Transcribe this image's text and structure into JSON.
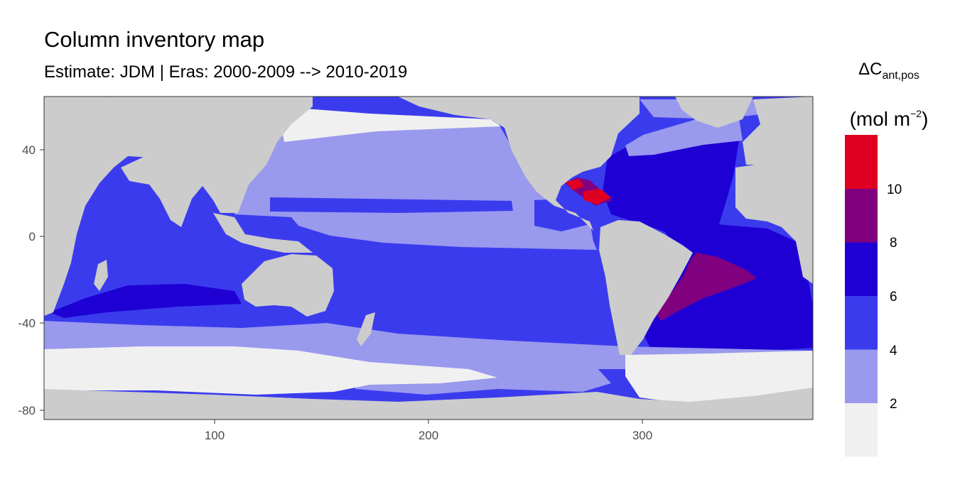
{
  "title": "Column inventory map",
  "subtitle": "Estimate: JDM  | Eras: 2000-2009 --> 2010-2019",
  "legend": {
    "title_main": "ΔC",
    "title_sub": "ant,pos",
    "unit_prefix": "(mol m",
    "unit_sup": "−2",
    "unit_suffix": ")",
    "bins": [
      {
        "color": "#f0f0f0"
      },
      {
        "color": "#9999ee"
      },
      {
        "color": "#3b3bee"
      },
      {
        "color": "#1e00d4"
      },
      {
        "color": "#800080"
      },
      {
        "color": "#e00022"
      }
    ],
    "ticks": [
      "2",
      "4",
      "6",
      "8",
      "10"
    ]
  },
  "axes": {
    "x_ticks": [
      "100",
      "200",
      "300"
    ],
    "y_ticks": [
      "40",
      "0",
      "-40",
      "-80"
    ]
  },
  "colors": {
    "land": "#cccccc",
    "ice": "#f0f0f0",
    "light_blue": "#9999ee",
    "mid_blue": "#3b3bee",
    "deep_blue": "#1e00d4",
    "purple": "#800080",
    "red": "#e00022"
  }
}
